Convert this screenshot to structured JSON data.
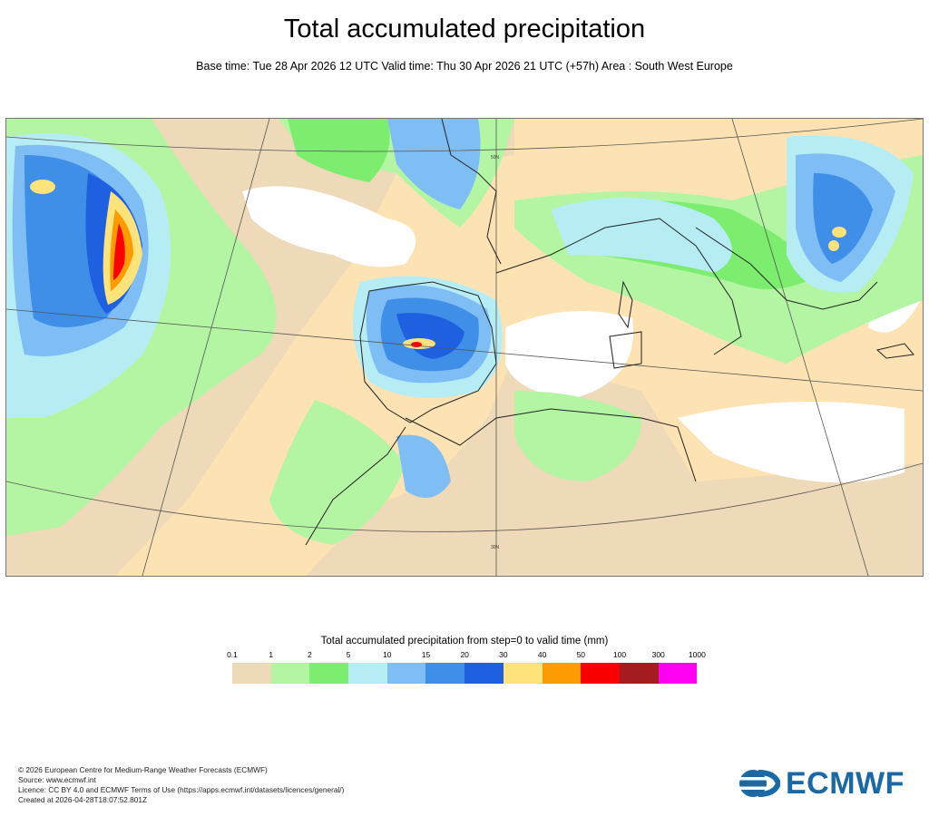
{
  "header": {
    "title": "Total accumulated precipitation",
    "subtitle": "Base time: Tue 28 Apr 2026 12 UTC Valid time: Thu 30 Apr 2026 21 UTC (+57h) Area : South West Europe"
  },
  "map": {
    "lat_label_north": "50N",
    "lat_label_south": "30N"
  },
  "legend": {
    "title": "Total accumulated precipitation from step=0 to valid time (mm)",
    "ticks": [
      "0.1",
      "1",
      "2",
      "5",
      "10",
      "15",
      "20",
      "30",
      "40",
      "50",
      "100",
      "300",
      "1000"
    ],
    "colors": [
      "#eed9b8",
      "#b4f5a4",
      "#7ced6e",
      "#b6edf5",
      "#7ebef5",
      "#3f8ee8",
      "#1f60e0",
      "#fde37a",
      "#fd9c00",
      "#fb0000",
      "#a41c20",
      "#ff00f2"
    ]
  },
  "footer": {
    "lines": [
      "© 2026 European Centre for Medium-Range Weather Forecasts (ECMWF)",
      "Source: www.ecmwf.int",
      "Licence: CC BY 4.0 and ECMWF Terms of Use (https://apps.ecmwf.int/datasets/licences/general/)",
      "Created at 2026-04-28T18:07:52.801Z"
    ]
  },
  "logo": {
    "text": "ECMWF"
  }
}
